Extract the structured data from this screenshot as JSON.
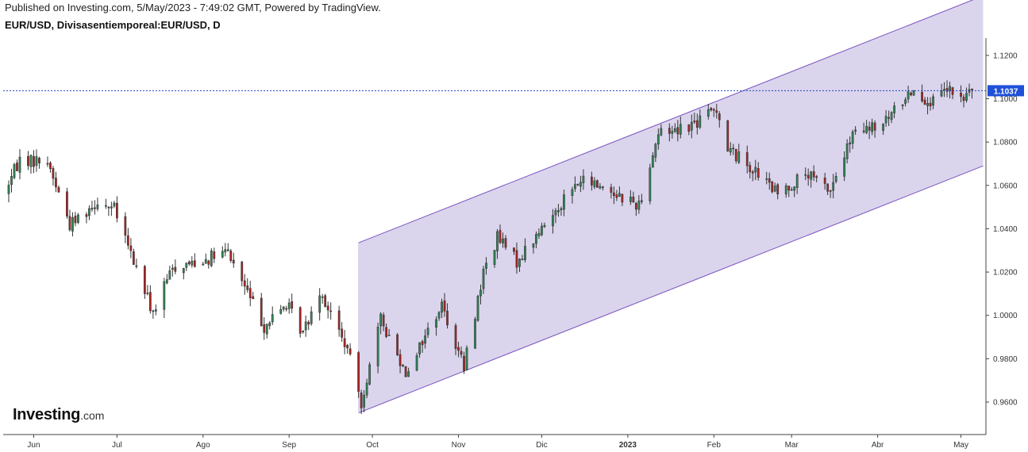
{
  "header": {
    "published": "Published on Investing.com, 5/May/2023 - 7:49:02 GMT, Powered by TradingView.",
    "symbol": "EUR/USD, Divisasentiemporeal:EUR/USD, D"
  },
  "logo": {
    "main": "Investing",
    "suffix": ".com"
  },
  "colors": {
    "up": "#2e8b57",
    "down": "#b22222",
    "channel_fill": "#d6d0ea",
    "channel_line": "#7b52c0",
    "price_line": "#1f3fbf",
    "price_label_bg": "#1e50d8"
  },
  "chart_data": {
    "type": "candlestick",
    "title": "EUR/USD, Divisasentiemporeal:EUR/USD, D",
    "x_ticks": [
      {
        "date": "2022-06-01",
        "label": "Jun",
        "bold": false
      },
      {
        "date": "2022-07-01",
        "label": "Jul",
        "bold": false
      },
      {
        "date": "2022-08-01",
        "label": "Ago",
        "bold": false
      },
      {
        "date": "2022-09-01",
        "label": "Sep",
        "bold": false
      },
      {
        "date": "2022-10-01",
        "label": "Oct",
        "bold": false
      },
      {
        "date": "2022-11-01",
        "label": "Nov",
        "bold": false
      },
      {
        "date": "2022-12-01",
        "label": "Dic",
        "bold": false
      },
      {
        "date": "2023-01-01",
        "label": "2023",
        "bold": true
      },
      {
        "date": "2023-02-01",
        "label": "Feb",
        "bold": false
      },
      {
        "date": "2023-03-01",
        "label": "Mar",
        "bold": false
      },
      {
        "date": "2023-04-01",
        "label": "Abr",
        "bold": false
      },
      {
        "date": "2023-05-01",
        "label": "May",
        "bold": false
      }
    ],
    "y_ticks": [
      "0.9600",
      "0.9800",
      "1.0000",
      "1.0200",
      "1.0400",
      "1.0600",
      "1.0800",
      "1.1000",
      "1.1200"
    ],
    "ylim": [
      0.945,
      1.128
    ],
    "xlim": [
      "2022-05-21",
      "2023-05-10"
    ],
    "last_price": 1.1037,
    "last_price_label": "1.1037",
    "channel": {
      "start_date": "2022-09-26",
      "lower_start": 0.955,
      "upper_start": 1.0335,
      "end_date": "2023-05-09",
      "lower_end": 1.069,
      "upper_end": 1.1475
    },
    "anchors": [
      [
        "2022-05-21",
        1.056
      ],
      [
        "2022-05-27",
        1.072
      ],
      [
        "2022-06-06",
        1.071
      ],
      [
        "2022-06-14",
        1.042
      ],
      [
        "2022-06-24",
        1.053
      ],
      [
        "2022-06-30",
        1.049
      ],
      [
        "2022-07-14",
        1.001
      ],
      [
        "2022-07-21",
        1.022
      ],
      [
        "2022-08-10",
        1.029
      ],
      [
        "2022-08-23",
        0.995
      ],
      [
        "2022-08-31",
        1.005
      ],
      [
        "2022-09-06",
        0.992
      ],
      [
        "2022-09-12",
        1.012
      ],
      [
        "2022-09-22",
        0.984
      ],
      [
        "2022-09-27",
        0.96
      ],
      [
        "2022-10-04",
        0.998
      ],
      [
        "2022-10-13",
        0.974
      ],
      [
        "2022-10-26",
        1.005
      ],
      [
        "2022-11-03",
        0.976
      ],
      [
        "2022-11-10",
        1.02
      ],
      [
        "2022-11-15",
        1.036
      ],
      [
        "2022-11-22",
        1.025
      ],
      [
        "2022-11-30",
        1.038
      ],
      [
        "2022-12-09",
        1.054
      ],
      [
        "2022-12-15",
        1.062
      ],
      [
        "2022-12-22",
        1.06
      ],
      [
        "2023-01-05",
        1.051
      ],
      [
        "2023-01-12",
        1.084
      ],
      [
        "2023-01-26",
        1.089
      ],
      [
        "2023-02-02",
        1.096
      ],
      [
        "2023-02-06",
        1.077
      ],
      [
        "2023-02-13",
        1.07
      ],
      [
        "2023-02-24",
        1.056
      ],
      [
        "2023-03-06",
        1.065
      ],
      [
        "2023-03-15",
        1.058
      ],
      [
        "2023-03-23",
        1.083
      ],
      [
        "2023-04-03",
        1.088
      ],
      [
        "2023-04-13",
        1.104
      ],
      [
        "2023-04-21",
        1.098
      ],
      [
        "2023-04-26",
        1.104
      ],
      [
        "2023-05-02",
        1.099
      ],
      [
        "2023-05-04",
        1.105
      ],
      [
        "2023-05-05",
        1.1037
      ]
    ]
  }
}
